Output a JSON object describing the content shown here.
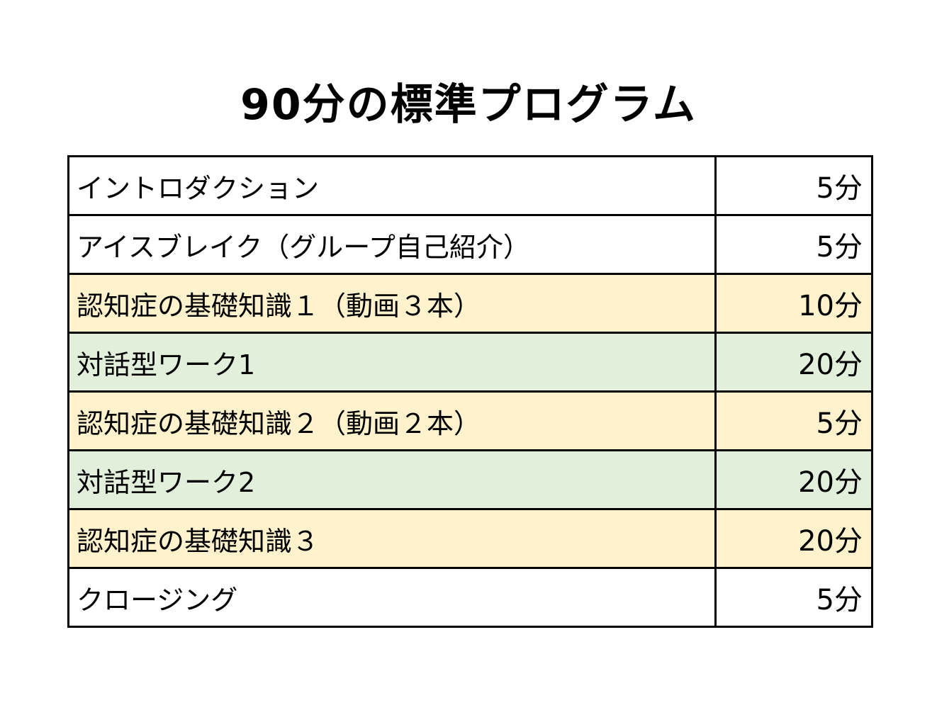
{
  "title": "90分の標準プログラム",
  "colors": {
    "plain": "#ffffff",
    "knowledge": "#fff2cc",
    "work": "#e2efda",
    "border": "#000000"
  },
  "rows": [
    {
      "item": "イントロダクション",
      "time": "5分",
      "highlight": "plain"
    },
    {
      "item": "アイスブレイク（グループ自己紹介）",
      "time": "5分",
      "highlight": "plain"
    },
    {
      "item": "認知症の基礎知識１（動画３本）",
      "time": "10分",
      "highlight": "knowledge"
    },
    {
      "item": "対話型ワーク1",
      "time": "20分",
      "highlight": "work"
    },
    {
      "item": "認知症の基礎知識２（動画２本）",
      "time": "5分",
      "highlight": "knowledge"
    },
    {
      "item": "対話型ワーク2",
      "time": "20分",
      "highlight": "work"
    },
    {
      "item": "認知症の基礎知識３",
      "time": "20分",
      "highlight": "knowledge"
    },
    {
      "item": "クロージング",
      "time": "5分",
      "highlight": "plain"
    }
  ]
}
